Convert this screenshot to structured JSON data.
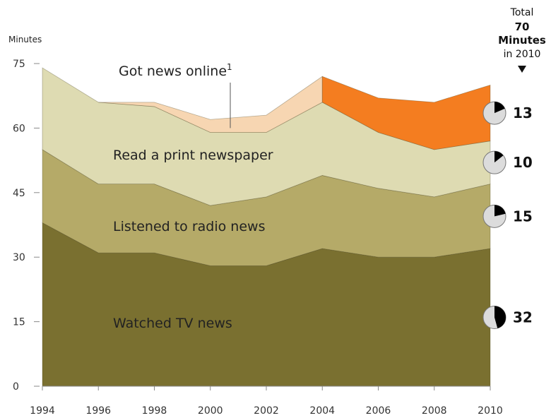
{
  "chart_data": {
    "type": "area",
    "stacked": true,
    "x": [
      1994,
      1996,
      1998,
      2000,
      2002,
      2004,
      2006,
      2008,
      2010
    ],
    "xlim": [
      1994,
      2010
    ],
    "ylim": [
      0,
      75
    ],
    "yticks": [
      0,
      15,
      30,
      45,
      60,
      75
    ],
    "ylabel": "Minutes",
    "grid": false,
    "series": [
      {
        "name": "Watched TV news",
        "color": "#7a7030",
        "values": [
          38,
          31,
          31,
          28,
          28,
          32,
          30,
          30,
          32
        ]
      },
      {
        "name": "Listened to radio news",
        "color": "#b5aa68",
        "values": [
          17,
          16,
          16,
          14,
          16,
          17,
          16,
          14,
          15
        ]
      },
      {
        "name": "Read a print newspaper",
        "color": "#dedbb2",
        "values": [
          19,
          19,
          18,
          17,
          15,
          17,
          13,
          11,
          10
        ]
      },
      {
        "name": "Got news online",
        "superscript": "1",
        "colors": {
          "pre_2004": "#f7d6b2",
          "from_2004": "#f47d20"
        },
        "values": [
          null,
          null,
          1,
          3,
          4,
          6,
          8,
          11,
          13
        ]
      }
    ],
    "total_header": {
      "line1": "Total",
      "line2": "70",
      "line3": "Minutes",
      "line4": "in 2010"
    },
    "total_arrow": "down-triangle-icon",
    "pie_markers": [
      {
        "series": "Got news online",
        "value": 13
      },
      {
        "series": "Read a print newspaper",
        "value": 10
      },
      {
        "series": "Listened to radio news",
        "value": 15
      },
      {
        "series": "Watched TV news",
        "value": 32
      }
    ],
    "pie_total": 70
  }
}
